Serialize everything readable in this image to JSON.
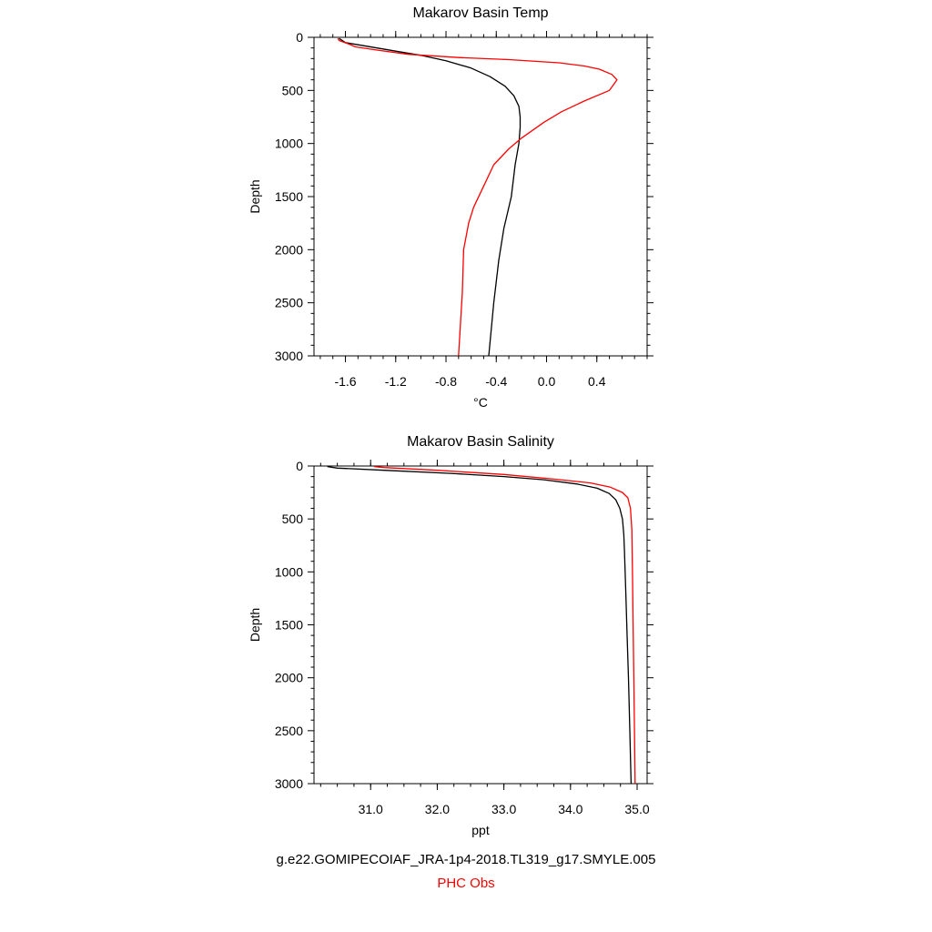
{
  "chart_data": [
    {
      "type": "line",
      "title": "Makarov Basin Temp",
      "xlabel": "°C",
      "ylabel": "Depth",
      "xlim": [
        -1.85,
        0.8
      ],
      "ylim": [
        3000,
        0
      ],
      "y_inverted": true,
      "xticks": [
        -1.6,
        -1.2,
        -0.8,
        -0.4,
        0.0,
        0.4
      ],
      "xtick_labels": [
        "-1.6",
        "-1.2",
        "-0.8",
        "-0.4",
        "0.0",
        "0.4"
      ],
      "yticks": [
        0,
        500,
        1000,
        1500,
        2000,
        2500,
        3000
      ],
      "ytick_labels": [
        "0",
        "500",
        "1000",
        "1500",
        "2000",
        "2500",
        "3000"
      ],
      "grid": false,
      "series": [
        {
          "name": "g.e22.GOMIPECOIAF_JRA-1p4-2018.TL319_g17.SMYLE.005",
          "color": "#000000",
          "points": [
            [
              -1.65,
              10
            ],
            [
              -1.6,
              50
            ],
            [
              -1.45,
              80
            ],
            [
              -1.2,
              130
            ],
            [
              -1.0,
              170
            ],
            [
              -0.8,
              220
            ],
            [
              -0.6,
              290
            ],
            [
              -0.45,
              370
            ],
            [
              -0.33,
              460
            ],
            [
              -0.26,
              550
            ],
            [
              -0.22,
              650
            ],
            [
              -0.21,
              750
            ],
            [
              -0.21,
              850
            ],
            [
              -0.22,
              1000
            ],
            [
              -0.25,
              1200
            ],
            [
              -0.28,
              1500
            ],
            [
              -0.34,
              1800
            ],
            [
              -0.38,
              2100
            ],
            [
              -0.42,
              2500
            ],
            [
              -0.46,
              3000
            ]
          ]
        },
        {
          "name": "PHC Obs",
          "color": "#ff0000",
          "points": [
            [
              -1.66,
              10
            ],
            [
              -1.65,
              30
            ],
            [
              -1.58,
              60
            ],
            [
              -1.52,
              90
            ],
            [
              -1.35,
              120
            ],
            [
              -1.1,
              160
            ],
            [
              -0.7,
              190
            ],
            [
              -0.3,
              210
            ],
            [
              0.1,
              240
            ],
            [
              0.3,
              270
            ],
            [
              0.42,
              300
            ],
            [
              0.52,
              350
            ],
            [
              0.56,
              400
            ],
            [
              0.5,
              500
            ],
            [
              0.3,
              600
            ],
            [
              0.12,
              700
            ],
            [
              -0.02,
              800
            ],
            [
              -0.2,
              950
            ],
            [
              -0.3,
              1050
            ],
            [
              -0.42,
              1200
            ],
            [
              -0.5,
              1400
            ],
            [
              -0.58,
              1600
            ],
            [
              -0.62,
              1750
            ],
            [
              -0.66,
              2000
            ],
            [
              -0.67,
              2400
            ],
            [
              -0.69,
              2800
            ],
            [
              -0.7,
              3000
            ]
          ]
        }
      ]
    },
    {
      "type": "line",
      "title": "Makarov Basin Salinity",
      "xlabel": "ppt",
      "ylabel": "Depth",
      "xlim": [
        30.15,
        35.15
      ],
      "ylim": [
        3000,
        0
      ],
      "y_inverted": true,
      "xticks": [
        31.0,
        32.0,
        33.0,
        34.0,
        35.0
      ],
      "xtick_labels": [
        "31.0",
        "32.0",
        "33.0",
        "34.0",
        "35.0"
      ],
      "yticks": [
        0,
        500,
        1000,
        1500,
        2000,
        2500,
        3000
      ],
      "ytick_labels": [
        "0",
        "500",
        "1000",
        "1500",
        "2000",
        "2500",
        "3000"
      ],
      "grid": false,
      "series": [
        {
          "name": "g.e22.GOMIPECOIAF_JRA-1p4-2018.TL319_g17.SMYLE.005",
          "color": "#000000",
          "points": [
            [
              30.35,
              5
            ],
            [
              30.5,
              20
            ],
            [
              31.2,
              40
            ],
            [
              32.2,
              70
            ],
            [
              33.0,
              100
            ],
            [
              33.6,
              130
            ],
            [
              34.1,
              170
            ],
            [
              34.4,
              210
            ],
            [
              34.58,
              260
            ],
            [
              34.68,
              320
            ],
            [
              34.74,
              400
            ],
            [
              34.78,
              500
            ],
            [
              34.8,
              650
            ],
            [
              34.81,
              800
            ],
            [
              34.83,
              1200
            ],
            [
              34.85,
              1600
            ],
            [
              34.87,
              2000
            ],
            [
              34.89,
              2500
            ],
            [
              34.91,
              3000
            ]
          ]
        },
        {
          "name": "PHC Obs",
          "color": "#ff0000",
          "points": [
            [
              31.05,
              5
            ],
            [
              31.2,
              15
            ],
            [
              32.0,
              40
            ],
            [
              33.0,
              80
            ],
            [
              33.7,
              120
            ],
            [
              34.3,
              160
            ],
            [
              34.6,
              200
            ],
            [
              34.78,
              250
            ],
            [
              34.86,
              300
            ],
            [
              34.9,
              400
            ],
            [
              34.92,
              600
            ],
            [
              34.93,
              1000
            ],
            [
              34.94,
              1500
            ],
            [
              34.95,
              2000
            ],
            [
              34.96,
              2500
            ],
            [
              34.97,
              3000
            ]
          ]
        }
      ]
    }
  ],
  "legend": {
    "model": "g.e22.GOMIPECOIAF_JRA-1p4-2018.TL319_g17.SMYLE.005",
    "model_color": "#000000",
    "obs": "PHC Obs",
    "obs_color": "#ff0000"
  }
}
